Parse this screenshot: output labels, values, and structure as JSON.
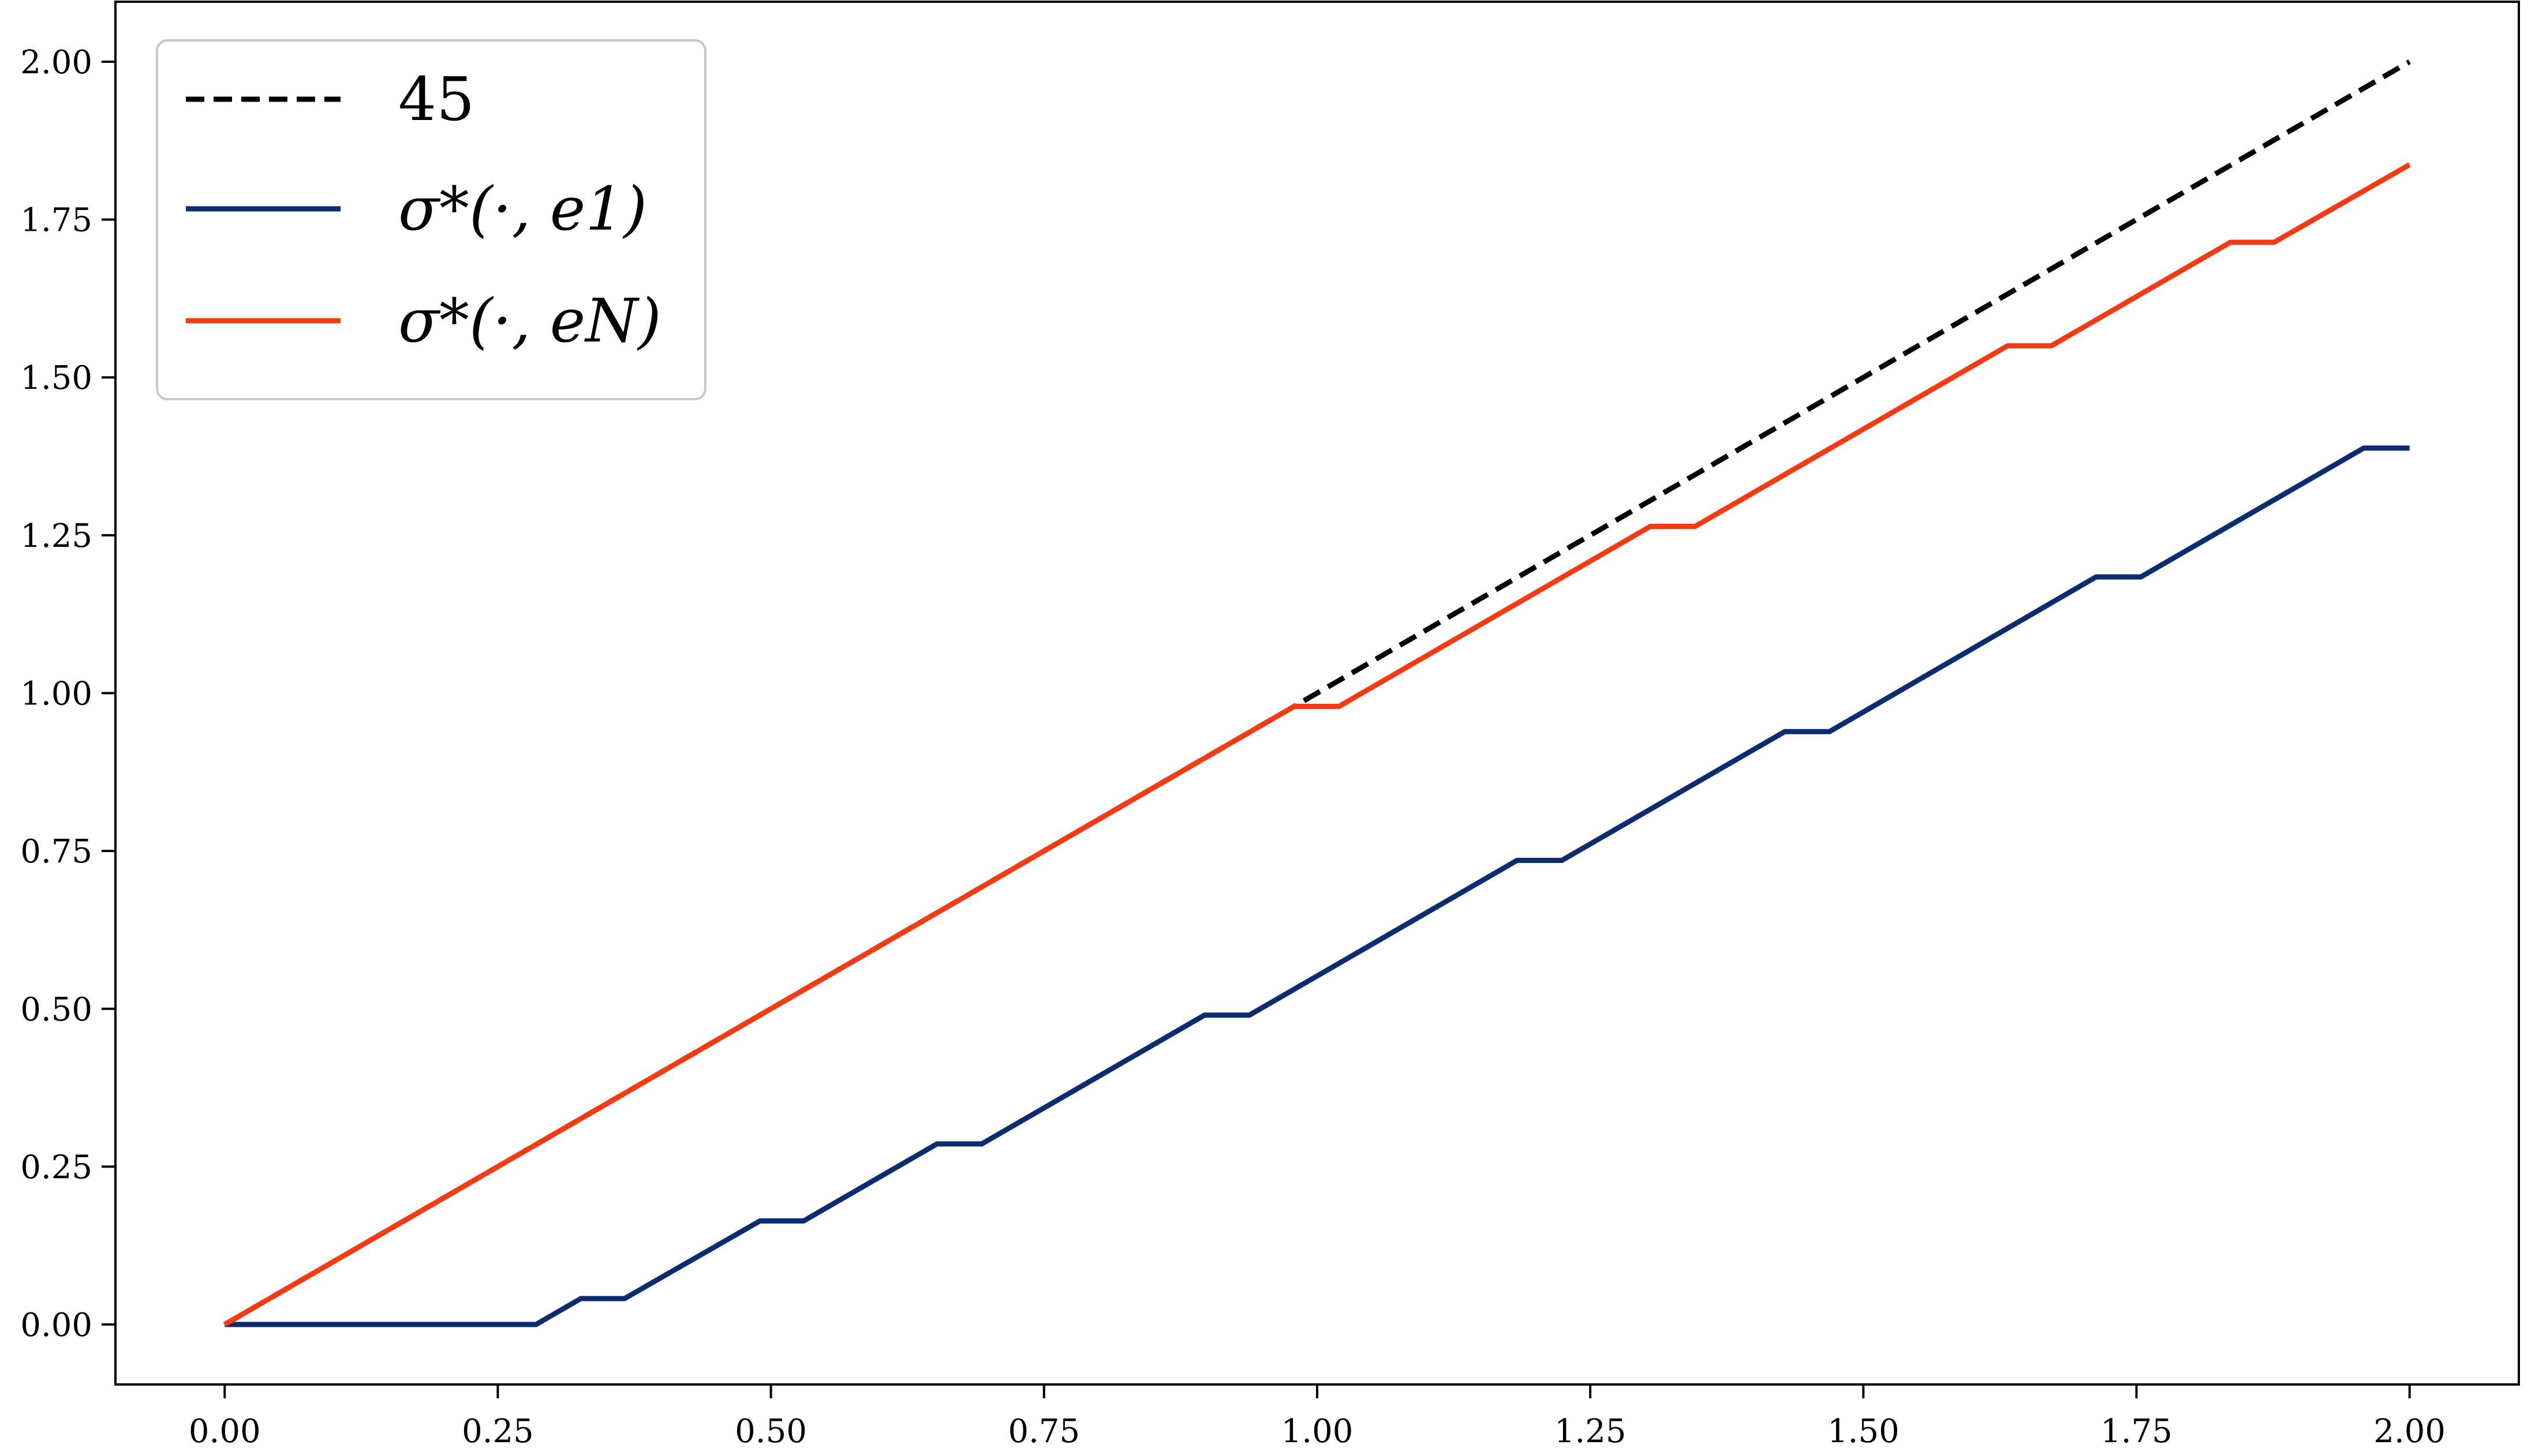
{
  "chart_data": {
    "type": "line",
    "title": "",
    "xlabel": "",
    "ylabel": "",
    "xlim": [
      -0.1,
      2.1
    ],
    "ylim": [
      -0.095,
      2.095
    ],
    "xticks": [
      0.0,
      0.25,
      0.5,
      0.75,
      1.0,
      1.25,
      1.5,
      1.75,
      2.0
    ],
    "yticks": [
      0.0,
      0.25,
      0.5,
      0.75,
      1.0,
      1.25,
      1.5,
      1.75,
      2.0
    ],
    "xtick_labels": [
      "0.00",
      "0.25",
      "0.50",
      "0.75",
      "1.00",
      "1.25",
      "1.50",
      "1.75",
      "2.00"
    ],
    "ytick_labels": [
      "0.00",
      "0.25",
      "0.50",
      "0.75",
      "1.00",
      "1.25",
      "1.50",
      "1.75",
      "2.00"
    ],
    "grid": false,
    "legend_position": "top-left",
    "series": [
      {
        "name": "45",
        "color": "#000000",
        "style": "dashed",
        "x": [
          0.0,
          2.0
        ],
        "y": [
          0.0,
          2.0
        ]
      },
      {
        "name": "σ*(·, e1)",
        "color": "#0b2c6e",
        "style": "solid",
        "x": [
          0.0,
          0.285,
          0.326,
          0.366,
          0.49,
          0.53,
          0.652,
          0.693,
          0.897,
          0.938,
          1.183,
          1.224,
          1.428,
          1.469,
          1.713,
          1.754,
          1.958,
          2.0
        ],
        "y": [
          0.0,
          0.0,
          0.041,
          0.041,
          0.164,
          0.164,
          0.286,
          0.286,
          0.49,
          0.49,
          0.735,
          0.735,
          0.939,
          0.939,
          1.184,
          1.184,
          1.388,
          1.388
        ]
      },
      {
        "name": "σ*(·, eN)",
        "color": "#f43b13",
        "style": "solid",
        "x": [
          0.0,
          0.979,
          1.02,
          1.305,
          1.346,
          1.632,
          1.672,
          1.836,
          1.876,
          2.0
        ],
        "y": [
          0.0,
          0.979,
          0.979,
          1.264,
          1.264,
          1.55,
          1.55,
          1.714,
          1.714,
          1.837
        ]
      }
    ]
  }
}
